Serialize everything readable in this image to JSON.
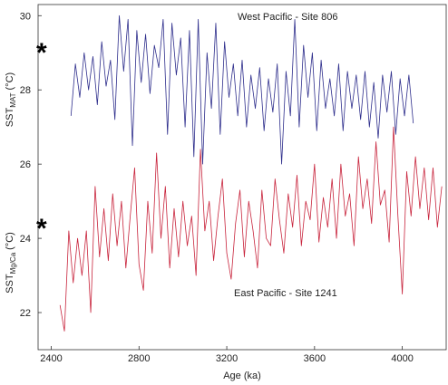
{
  "chart_data": {
    "type": "line",
    "x_label": "Age (ka)",
    "y_labels": [
      {
        "text": "SST",
        "subscript": "MAT",
        "unit": "(°C)"
      },
      {
        "text": "SST",
        "subscript": "Mg/Ca",
        "unit": "(°C)"
      }
    ],
    "annotations": [
      "West Pacific - Site 806",
      "East Pacific - Site 1241",
      "*",
      "*"
    ],
    "xlim": [
      2340,
      4200
    ],
    "xticks": [
      2400,
      2800,
      3200,
      3600,
      4000
    ],
    "ylim": [
      21.0,
      30.3
    ],
    "yticks": [
      22,
      24,
      26,
      28,
      30
    ],
    "series": [
      {
        "name": "West Pacific - Site 806",
        "color": "#2e2e8c",
        "x": [
          2490,
          2510,
          2530,
          2550,
          2570,
          2590,
          2610,
          2630,
          2650,
          2670,
          2690,
          2710,
          2730,
          2750,
          2770,
          2790,
          2810,
          2830,
          2850,
          2870,
          2890,
          2910,
          2930,
          2950,
          2970,
          2990,
          3010,
          3030,
          3050,
          3070,
          3090,
          3110,
          3130,
          3150,
          3170,
          3190,
          3210,
          3230,
          3250,
          3270,
          3290,
          3310,
          3330,
          3350,
          3370,
          3390,
          3410,
          3430,
          3450,
          3470,
          3490,
          3510,
          3530,
          3550,
          3570,
          3590,
          3610,
          3630,
          3650,
          3670,
          3690,
          3710,
          3730,
          3750,
          3770,
          3790,
          3810,
          3830,
          3850,
          3870,
          3890,
          3910,
          3930,
          3950,
          3970,
          3990,
          4010,
          4030,
          4050
        ],
        "values": [
          27.3,
          28.7,
          27.8,
          29.0,
          28.0,
          28.9,
          27.6,
          29.3,
          28.1,
          28.8,
          27.2,
          30.0,
          28.5,
          29.9,
          26.5,
          29.6,
          28.2,
          29.5,
          27.9,
          29.2,
          28.6,
          29.9,
          26.8,
          29.8,
          28.4,
          29.4,
          27.0,
          29.6,
          26.2,
          29.9,
          26.0,
          29.0,
          27.5,
          29.8,
          26.8,
          29.3,
          27.8,
          28.7,
          27.3,
          28.8,
          27.0,
          28.4,
          27.5,
          28.6,
          26.9,
          28.3,
          27.4,
          28.7,
          26.0,
          28.5,
          27.3,
          29.9,
          27.0,
          29.2,
          27.8,
          29.0,
          26.9,
          28.8,
          27.5,
          28.3,
          27.3,
          28.7,
          26.9,
          28.5,
          27.5,
          28.4,
          27.2,
          28.5,
          27.0,
          28.2,
          26.7,
          28.4,
          27.4,
          28.5,
          26.8,
          28.3,
          27.3,
          28.4,
          27.1
        ]
      },
      {
        "name": "East Pacific - Site 1241",
        "color": "#c8243c",
        "x": [
          2440,
          2460,
          2480,
          2500,
          2520,
          2540,
          2560,
          2580,
          2600,
          2620,
          2640,
          2660,
          2680,
          2700,
          2720,
          2740,
          2760,
          2780,
          2800,
          2820,
          2840,
          2860,
          2880,
          2900,
          2920,
          2940,
          2960,
          2980,
          3000,
          3020,
          3040,
          3060,
          3080,
          3100,
          3120,
          3140,
          3160,
          3180,
          3200,
          3220,
          3240,
          3260,
          3280,
          3300,
          3320,
          3340,
          3360,
          3380,
          3400,
          3420,
          3440,
          3460,
          3480,
          3500,
          3520,
          3540,
          3560,
          3580,
          3600,
          3620,
          3640,
          3660,
          3680,
          3700,
          3720,
          3740,
          3760,
          3780,
          3800,
          3820,
          3840,
          3860,
          3880,
          3900,
          3920,
          3940,
          3960,
          3980,
          4000,
          4020,
          4040,
          4060,
          4080,
          4100,
          4120,
          4140,
          4160,
          4180
        ],
        "values": [
          22.2,
          21.5,
          24.2,
          22.8,
          24.0,
          23.0,
          24.2,
          22.0,
          25.4,
          23.5,
          24.8,
          23.4,
          25.2,
          23.8,
          25.0,
          23.2,
          24.6,
          25.9,
          23.3,
          22.6,
          25.0,
          23.6,
          26.3,
          24.0,
          25.4,
          23.2,
          24.8,
          23.5,
          25.0,
          23.8,
          24.6,
          23.0,
          26.4,
          24.2,
          25.0,
          23.4,
          24.6,
          25.6,
          23.6,
          22.9,
          24.4,
          25.3,
          23.5,
          25.0,
          24.2,
          23.2,
          25.3,
          24.0,
          23.8,
          25.6,
          24.5,
          23.6,
          25.2,
          24.3,
          25.7,
          23.8,
          25.0,
          24.5,
          26.0,
          23.9,
          25.1,
          24.3,
          25.6,
          24.0,
          26.0,
          24.6,
          25.2,
          23.8,
          26.2,
          24.8,
          25.6,
          24.4,
          26.6,
          24.9,
          25.3,
          23.9,
          27.0,
          24.6,
          22.5,
          25.8,
          24.6,
          26.2,
          24.8,
          25.9,
          24.5,
          25.9,
          24.3,
          25.4
        ]
      }
    ]
  }
}
